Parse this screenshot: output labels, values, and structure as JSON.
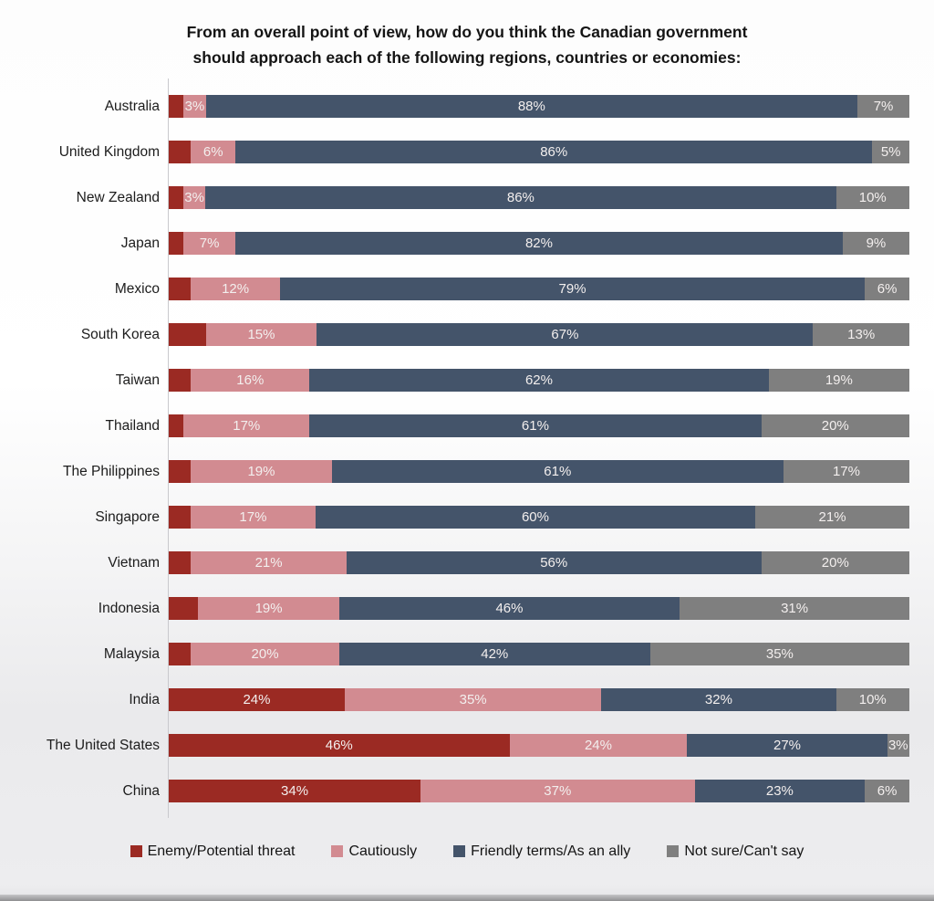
{
  "title": {
    "line1": "From an overall point of view, how do you think the Canadian government",
    "line2": "should approach each of the following regions, countries or economies:"
  },
  "chart_data": {
    "type": "bar",
    "orientation": "horizontal",
    "stacked": true,
    "title": "From an overall point of view, how do you think the Canadian government should approach each of the following regions, countries or economies:",
    "xlim": [
      0,
      100
    ],
    "value_suffix": "%",
    "grid": false,
    "legend_position": "bottom",
    "categories": [
      "Australia",
      "United Kingdom",
      "New Zealand",
      "Japan",
      "Mexico",
      "South Korea",
      "Taiwan",
      "Thailand",
      "The Philippines",
      "Singapore",
      "Vietnam",
      "Indonesia",
      "Malaysia",
      "India",
      "The United States",
      "China"
    ],
    "series": [
      {
        "name": "Enemy/Potential threat",
        "color": "#9b2a23",
        "values": [
          2,
          3,
          2,
          2,
          3,
          5,
          3,
          2,
          3,
          3,
          3,
          4,
          3,
          24,
          46,
          34
        ],
        "labels": [
          "",
          "",
          "",
          "",
          "",
          "",
          "",
          "",
          "",
          "",
          "",
          "",
          "",
          "24%",
          "46%",
          "34%"
        ]
      },
      {
        "name": "Cautiously",
        "color": "#d28b91",
        "values": [
          3,
          6,
          3,
          7,
          12,
          15,
          16,
          17,
          19,
          17,
          21,
          19,
          20,
          35,
          24,
          37
        ],
        "labels": [
          "3%",
          "6%",
          "3%",
          "7%",
          "12%",
          "15%",
          "16%",
          "17%",
          "19%",
          "17%",
          "21%",
          "19%",
          "20%",
          "35%",
          "24%",
          "37%"
        ]
      },
      {
        "name": "Friendly terms/As an ally",
        "color": "#44546a",
        "values": [
          88,
          86,
          86,
          82,
          79,
          67,
          62,
          61,
          61,
          60,
          56,
          46,
          42,
          32,
          27,
          23
        ],
        "labels": [
          "88%",
          "86%",
          "86%",
          "82%",
          "79%",
          "67%",
          "62%",
          "61%",
          "61%",
          "60%",
          "56%",
          "46%",
          "42%",
          "32%",
          "27%",
          "23%"
        ]
      },
      {
        "name": "Not sure/Can't say",
        "color": "#7f7f7f",
        "values": [
          7,
          5,
          10,
          9,
          6,
          13,
          19,
          20,
          17,
          21,
          20,
          31,
          35,
          10,
          3,
          6
        ],
        "labels": [
          "7%",
          "5%",
          "10%",
          "9%",
          "6%",
          "13%",
          "19%",
          "20%",
          "17%",
          "21%",
          "20%",
          "31%",
          "35%",
          "10%",
          "3%",
          "6%"
        ]
      }
    ]
  }
}
